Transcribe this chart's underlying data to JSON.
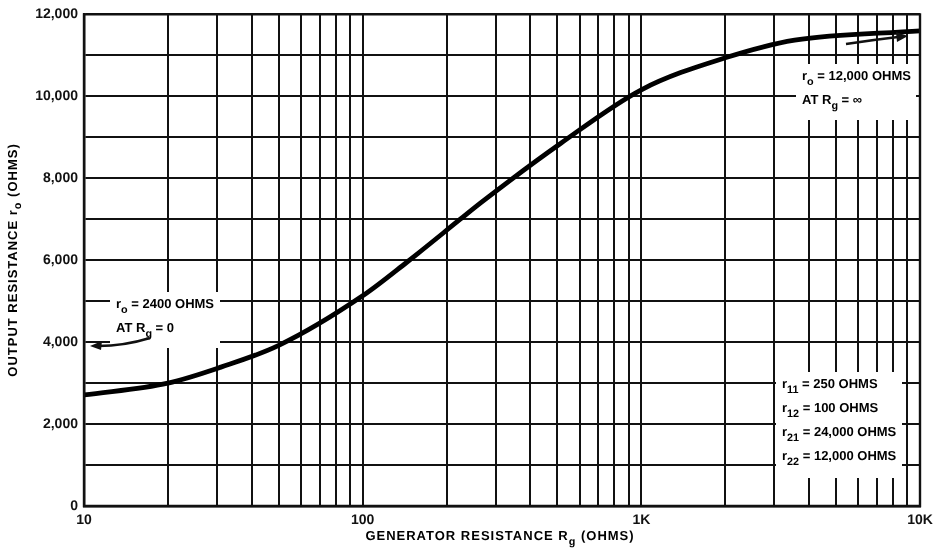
{
  "chart_data": {
    "type": "line",
    "xlabel": "GENERATOR RESISTANCE R$_{g}$ (OHMS)",
    "ylabel": "OUTPUT RESISTANCE r$_{o}$ (OHMS)",
    "x": [
      10,
      20,
      31,
      50,
      100,
      144,
      224,
      265,
      513,
      1000,
      2000,
      3550,
      10000
    ],
    "series": [
      {
        "color": "#000000",
        "values": [
          2710,
          3000,
          3390,
          3920,
          5130,
          5950,
          7000,
          7400,
          8850,
          10160,
          10940,
          11370,
          11600
        ]
      }
    ],
    "log": "x",
    "xlim": [
      10,
      10000
    ],
    "xticks": [
      {
        "value": 10,
        "label": "10"
      },
      {
        "value": 20,
        "label": null
      },
      {
        "value": 30,
        "label": null
      },
      {
        "value": 40,
        "label": null
      },
      {
        "value": 50,
        "label": null
      },
      {
        "value": 60,
        "label": null
      },
      {
        "value": 70,
        "label": null
      },
      {
        "value": 80,
        "label": null
      },
      {
        "value": 90,
        "label": null
      },
      {
        "value": 100,
        "label": "100"
      },
      {
        "value": 200,
        "label": null
      },
      {
        "value": 300,
        "label": null
      },
      {
        "value": 400,
        "label": null
      },
      {
        "value": 500,
        "label": null
      },
      {
        "value": 600,
        "label": null
      },
      {
        "value": 700,
        "label": null
      },
      {
        "value": 800,
        "label": null
      },
      {
        "value": 900,
        "label": null
      },
      {
        "value": 1000,
        "label": "1K"
      },
      {
        "value": 2000,
        "label": null
      },
      {
        "value": 3000,
        "label": null
      },
      {
        "value": 4000,
        "label": null
      },
      {
        "value": 5000,
        "label": null
      },
      {
        "value": 6000,
        "label": null
      },
      {
        "value": 7000,
        "label": null
      },
      {
        "value": 8000,
        "label": null
      },
      {
        "value": 9000,
        "label": null
      },
      {
        "value": 10000,
        "label": "10K"
      }
    ],
    "ylim": [
      0,
      12000
    ],
    "yticks": [
      {
        "value": 0,
        "label": "0"
      },
      {
        "value": 1000,
        "label": null
      },
      {
        "value": 2000,
        "label": "2,000"
      },
      {
        "value": 3000,
        "label": null
      },
      {
        "value": 4000,
        "label": "4,000"
      },
      {
        "value": 5000,
        "label": null
      },
      {
        "value": 6000,
        "label": "6,000"
      },
      {
        "value": 7000,
        "label": null
      },
      {
        "value": 8000,
        "label": "8,000"
      },
      {
        "value": 9000,
        "label": null
      },
      {
        "value": 10000,
        "label": "10,000"
      },
      {
        "value": 11000,
        "label": null
      },
      {
        "value": 12000,
        "label": "12,000"
      }
    ],
    "grid": true,
    "legend": false,
    "marker": "none",
    "line_style": "solid",
    "annotations": [
      "r$_{o}$ = 2400 OHMS\nAT R$_{g}$ = 0",
      "r$_{o}$ = 12,000 OHMS\nAT R$_{g}$ = ∞",
      "r$_{11}$ = 250 OHMS\nr$_{12}$ = 100 OHMS\nr$_{21}$ = 24,000 OHMS\nr$_{22}$ = 12,000 OHMS"
    ]
  }
}
